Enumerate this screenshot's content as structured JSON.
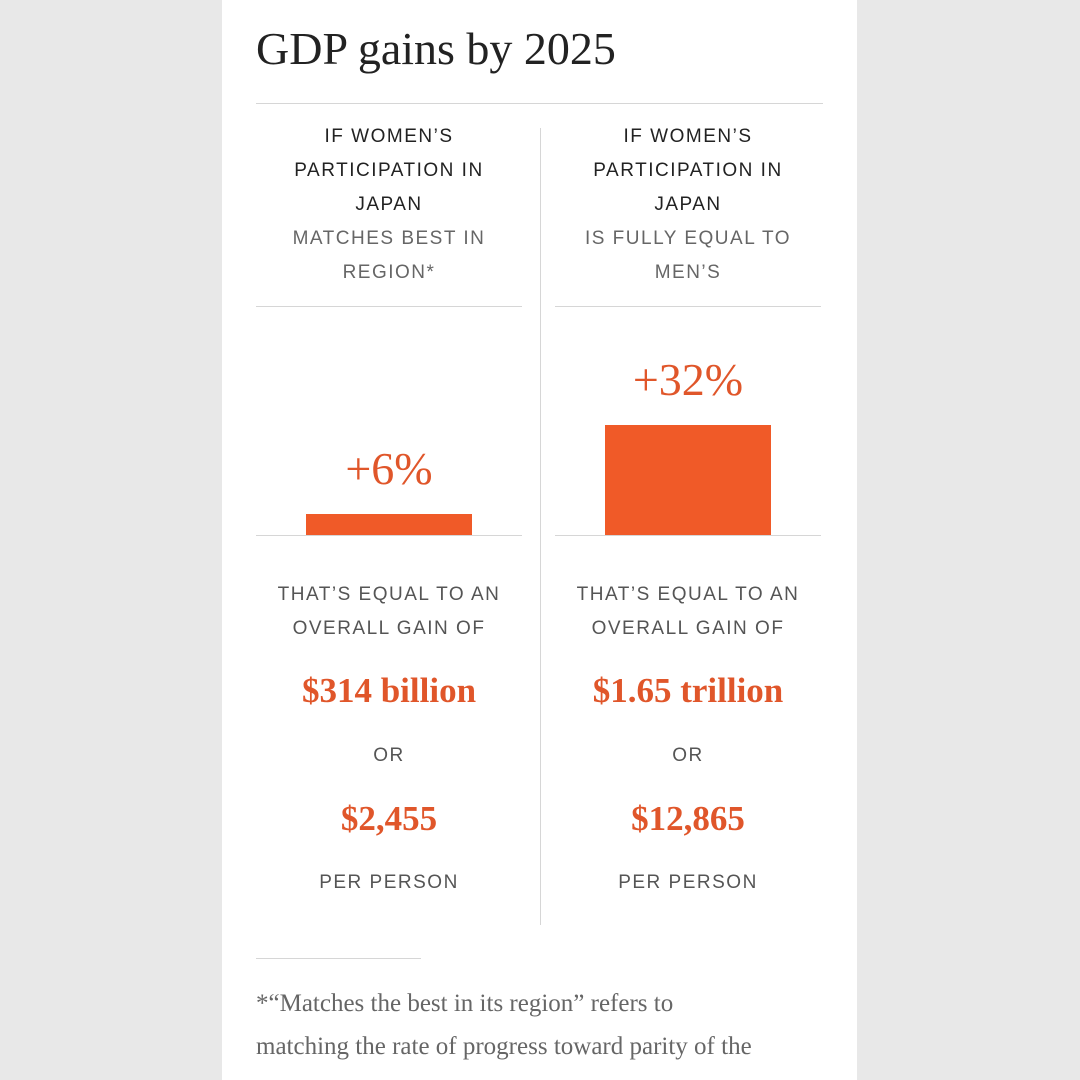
{
  "title": "GDP gains by 2025",
  "colors": {
    "accent": "#f05a28",
    "background": "#e8e8e8"
  },
  "columns": [
    {
      "header_lines": [
        "IF WOMEN’S",
        "PARTICIPATION IN",
        "JAPAN"
      ],
      "scenario_lines": [
        "MATCHES BEST IN",
        "REGION*"
      ],
      "gain_label": "+6%",
      "intro_lines": [
        "THAT’S EQUAL TO AN",
        "OVERALL GAIN OF"
      ],
      "overall_gain": "$314 billion",
      "or": "OR",
      "per_person_value": "$2,455",
      "per_person_label": "PER PERSON"
    },
    {
      "header_lines": [
        "IF WOMEN’S",
        "PARTICIPATION IN",
        "JAPAN"
      ],
      "scenario_lines": [
        "IS FULLY EQUAL TO",
        "MEN’S"
      ],
      "gain_label": "+32%",
      "intro_lines": [
        "THAT’S EQUAL TO AN",
        "OVERALL GAIN OF"
      ],
      "overall_gain": "$1.65 trillion",
      "or": "OR",
      "per_person_value": "$12,865",
      "per_person_label": "PER PERSON"
    }
  ],
  "footnote_lines": [
    "*“Matches the best in its region” refers to",
    "matching the rate of progress toward parity of the"
  ],
  "chart_data": {
    "type": "bar",
    "categories": [
      "MATCHES BEST IN REGION*",
      "IS FULLY EQUAL TO MEN’S"
    ],
    "values": [
      6,
      32
    ],
    "title": "GDP gains by 2025",
    "data_labels": [
      "+6%",
      "+32%"
    ],
    "unit": "%",
    "grid": false
  }
}
